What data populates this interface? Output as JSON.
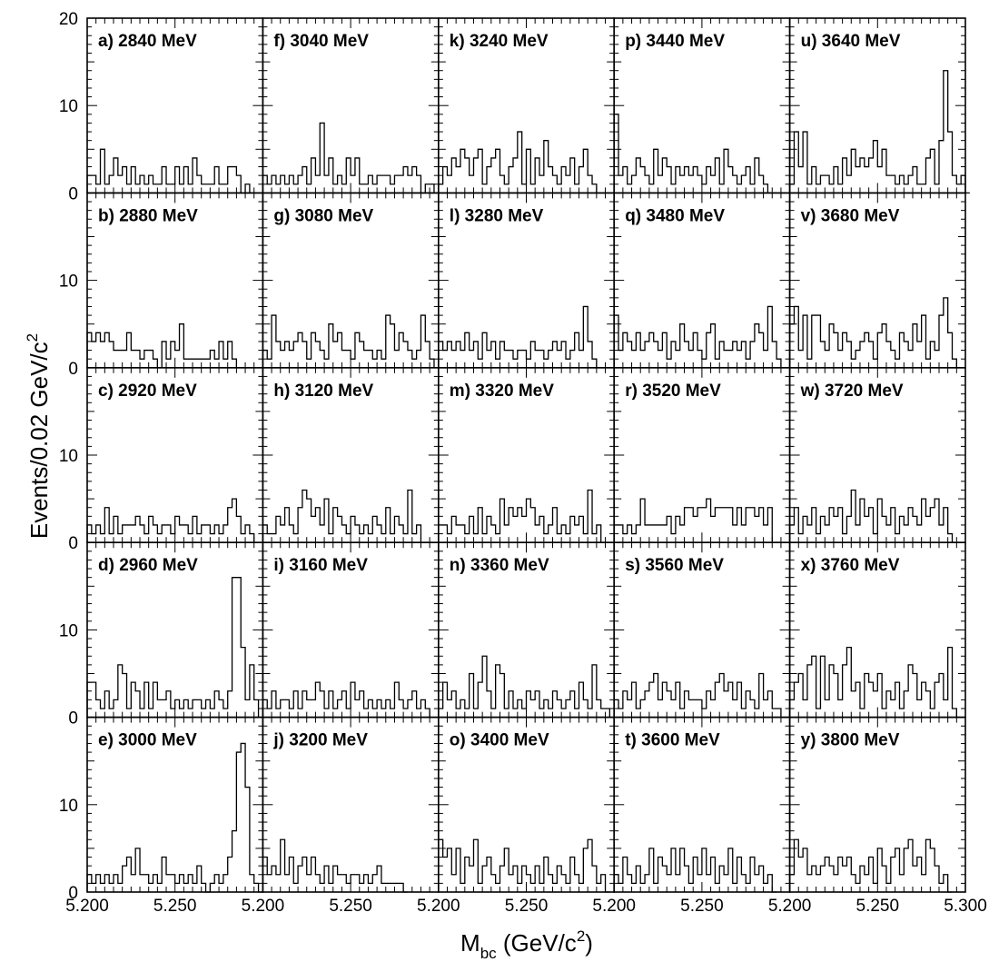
{
  "chart_data": {
    "type": "bar",
    "layout": "5x5 grid of histograms (columns left to right, rows top to bottom)",
    "xlabel": "M",
    "xlabel_sub": "bc",
    "xlabel_unit_prefix": " (GeV/c",
    "xlabel_unit_sup": "2",
    "xlabel_unit_suffix": ")",
    "ylabel": "Events/0.02 GeV/c",
    "ylabel_sup": "2",
    "x_range": [
      5.2,
      5.3
    ],
    "y_range": [
      0,
      20
    ],
    "x_tick_labels": [
      "5.200",
      "5.250",
      "5.200",
      "5.250",
      "5.200",
      "5.250",
      "5.200",
      "5.250",
      "5.200",
      "5.250",
      "5.300"
    ],
    "y_tick_labels": [
      "0",
      "10",
      "20"
    ],
    "bin_start": 5.2,
    "bin_width": 0.0025,
    "grid": false,
    "panels": [
      {
        "label": "a) 2840 MeV",
        "values": [
          2,
          2,
          1,
          5,
          1,
          2,
          4,
          2,
          3,
          1,
          3,
          1,
          2,
          1,
          2,
          1,
          1,
          3,
          1,
          1,
          3,
          1,
          3,
          1,
          4,
          2,
          1,
          1,
          1,
          3,
          1,
          1,
          3,
          3,
          2,
          0,
          1
        ]
      },
      {
        "label": "b) 2880 MeV",
        "values": [
          4,
          3,
          4,
          3,
          4,
          3,
          2,
          2,
          2,
          4,
          2,
          2,
          1,
          2,
          2,
          1,
          0,
          3,
          1,
          3,
          2,
          5,
          1,
          1,
          1,
          1,
          1,
          1,
          2,
          1,
          3,
          1,
          3,
          1,
          0,
          0
        ]
      },
      {
        "label": "c) 2920 MeV",
        "values": [
          2,
          1,
          2,
          1,
          4,
          1,
          3,
          1,
          2,
          2,
          2,
          3,
          2,
          1,
          3,
          2,
          1,
          2,
          2,
          1,
          3,
          2,
          2,
          1,
          3,
          1,
          2,
          2,
          1,
          2,
          1,
          2,
          4,
          5,
          3,
          1,
          2,
          1,
          0
        ]
      },
      {
        "label": "d) 2960 MeV",
        "values": [
          4,
          4,
          2,
          1,
          3,
          1,
          2,
          6,
          5,
          1,
          4,
          3,
          1,
          4,
          1,
          4,
          2,
          2,
          3,
          1,
          2,
          1,
          2,
          1,
          2,
          2,
          1,
          2,
          1,
          3,
          2,
          1,
          3,
          16,
          16,
          8,
          2,
          6,
          2,
          0
        ]
      },
      {
        "label": "e) 3000 MeV",
        "values": [
          2,
          1,
          2,
          1,
          2,
          1,
          2,
          1,
          3,
          4,
          2,
          5,
          2,
          2,
          1,
          2,
          1,
          4,
          2,
          2,
          1,
          2,
          1,
          2,
          1,
          3,
          1,
          0,
          1,
          2,
          1,
          2,
          4,
          7,
          16,
          17,
          12,
          2,
          1,
          0
        ]
      },
      {
        "label": "f) 3040 MeV",
        "values": [
          2,
          1,
          2,
          1,
          2,
          1,
          2,
          1,
          2,
          3,
          1,
          4,
          2,
          8,
          2,
          4,
          1,
          2,
          1,
          4,
          2,
          4,
          1,
          1,
          2,
          1,
          2,
          2,
          2,
          1,
          2,
          2,
          3,
          2,
          3,
          2,
          0,
          1,
          1,
          0
        ]
      },
      {
        "label": "g) 3080 MeV",
        "values": [
          2,
          1,
          6,
          3,
          2,
          3,
          2,
          3,
          4,
          3,
          1,
          4,
          3,
          2,
          1,
          5,
          3,
          4,
          2,
          2,
          1,
          4,
          3,
          2,
          2,
          1,
          2,
          1,
          6,
          5,
          2,
          4,
          3,
          2,
          1,
          2,
          6,
          3,
          1,
          0
        ]
      },
      {
        "label": "h) 3120 MeV",
        "values": [
          2,
          1,
          1,
          3,
          2,
          4,
          2,
          1,
          4,
          6,
          5,
          3,
          4,
          2,
          5,
          1,
          4,
          3,
          2,
          1,
          3,
          2,
          1,
          2,
          1,
          3,
          2,
          1,
          4,
          1,
          3,
          2,
          1,
          6,
          1,
          2,
          0
        ]
      },
      {
        "label": "i) 3160 MeV",
        "values": [
          2,
          1,
          3,
          1,
          2,
          2,
          1,
          3,
          1,
          3,
          2,
          2,
          4,
          3,
          1,
          3,
          1,
          2,
          3,
          1,
          4,
          2,
          3,
          1,
          2,
          1,
          2,
          1,
          2,
          1,
          4,
          2,
          1,
          2,
          3,
          1,
          2,
          1,
          0
        ]
      },
      {
        "label": "j) 3200 MeV",
        "values": [
          4,
          2,
          3,
          2,
          6,
          2,
          4,
          1,
          3,
          4,
          2,
          4,
          2,
          1,
          3,
          1,
          3,
          2,
          2,
          1,
          2,
          2,
          1,
          2,
          1,
          2,
          3,
          1,
          1,
          1,
          1,
          1,
          0
        ]
      },
      {
        "label": "k) 3240 MeV",
        "values": [
          1,
          3,
          2,
          4,
          3,
          5,
          4,
          2,
          4,
          5,
          1,
          3,
          4,
          5,
          2,
          1,
          3,
          4,
          7,
          1,
          5,
          1,
          4,
          2,
          6,
          3,
          2,
          1,
          3,
          2,
          4,
          1,
          3,
          5,
          2,
          1,
          0
        ]
      },
      {
        "label": "l) 3280 MeV",
        "values": [
          3,
          2,
          3,
          2,
          3,
          2,
          4,
          2,
          3,
          1,
          4,
          2,
          3,
          1,
          3,
          2,
          2,
          1,
          2,
          2,
          1,
          3,
          2,
          2,
          1,
          2,
          3,
          2,
          3,
          1,
          2,
          4,
          2,
          7,
          3,
          1,
          0
        ]
      },
      {
        "label": "m) 3320 MeV",
        "values": [
          2,
          2,
          1,
          3,
          2,
          2,
          1,
          3,
          1,
          4,
          1,
          3,
          2,
          1,
          5,
          2,
          4,
          3,
          4,
          3,
          5,
          4,
          2,
          3,
          1,
          2,
          4,
          1,
          2,
          1,
          3,
          2,
          3,
          1,
          6,
          1,
          2,
          0
        ]
      },
      {
        "label": "n) 3360 MeV",
        "values": [
          1,
          4,
          2,
          3,
          1,
          2,
          1,
          5,
          1,
          4,
          7,
          3,
          1,
          6,
          5,
          1,
          3,
          1,
          2,
          1,
          3,
          2,
          3,
          1,
          2,
          1,
          3,
          2,
          1,
          2,
          3,
          1,
          4,
          2,
          1,
          6,
          2,
          1,
          1,
          0
        ]
      },
      {
        "label": "o) 3400 MeV",
        "values": [
          6,
          4,
          5,
          2,
          5,
          1,
          4,
          3,
          6,
          1,
          3,
          4,
          2,
          1,
          3,
          5,
          2,
          3,
          1,
          3,
          2,
          1,
          3,
          1,
          4,
          2,
          1,
          3,
          2,
          1,
          4,
          2,
          1,
          5,
          6,
          3,
          1,
          2,
          0
        ]
      },
      {
        "label": "p) 3440 MeV",
        "values": [
          9,
          2,
          3,
          1,
          2,
          4,
          3,
          2,
          1,
          5,
          2,
          4,
          3,
          1,
          3,
          2,
          3,
          2,
          3,
          2,
          1,
          3,
          2,
          4,
          1,
          5,
          3,
          2,
          1,
          2,
          3,
          1,
          4,
          2,
          1,
          0
        ]
      },
      {
        "label": "q) 3480 MeV",
        "values": [
          6,
          2,
          4,
          3,
          2,
          4,
          2,
          3,
          4,
          3,
          2,
          4,
          1,
          3,
          2,
          5,
          3,
          2,
          4,
          2,
          1,
          4,
          5,
          1,
          3,
          2,
          2,
          3,
          2,
          3,
          1,
          3,
          5,
          4,
          2,
          7,
          3,
          1,
          0
        ]
      },
      {
        "label": "r) 3520 MeV",
        "values": [
          2,
          2,
          1,
          2,
          1,
          2,
          5,
          2,
          2,
          2,
          2,
          2,
          3,
          1,
          3,
          2,
          4,
          4,
          3,
          4,
          4,
          5,
          3,
          4,
          4,
          4,
          4,
          2,
          4,
          2,
          4,
          4,
          3,
          4,
          2,
          4,
          0
        ]
      },
      {
        "label": "s) 3560 MeV",
        "values": [
          2,
          1,
          3,
          2,
          4,
          1,
          2,
          3,
          4,
          5,
          2,
          4,
          3,
          2,
          4,
          1,
          3,
          2,
          2,
          2,
          1,
          3,
          2,
          4,
          5,
          3,
          4,
          2,
          4,
          1,
          3,
          2,
          1,
          5,
          2,
          3,
          1,
          1,
          0
        ]
      },
      {
        "label": "t) 3600 MeV",
        "values": [
          2,
          1,
          4,
          2,
          1,
          3,
          1,
          2,
          5,
          1,
          4,
          3,
          2,
          5,
          2,
          5,
          3,
          1,
          4,
          2,
          5,
          2,
          4,
          1,
          3,
          2,
          5,
          1,
          4,
          2,
          1,
          4,
          2,
          3,
          1,
          2,
          0
        ]
      },
      {
        "label": "u) 3640 MeV",
        "values": [
          1,
          7,
          3,
          7,
          1,
          3,
          1,
          2,
          2,
          1,
          3,
          1,
          4,
          2,
          5,
          3,
          4,
          3,
          4,
          6,
          3,
          5,
          2,
          2,
          1,
          2,
          1,
          2,
          3,
          1,
          1,
          4,
          5,
          1,
          6,
          14,
          7,
          2,
          1,
          2,
          0
        ]
      },
      {
        "label": "v) 3680 MeV",
        "values": [
          5,
          7,
          2,
          6,
          1,
          6,
          6,
          3,
          2,
          5,
          4,
          2,
          4,
          3,
          1,
          2,
          3,
          4,
          3,
          1,
          4,
          5,
          3,
          2,
          1,
          4,
          3,
          2,
          5,
          3,
          6,
          1,
          3,
          2,
          6,
          8,
          4,
          1,
          0
        ]
      },
      {
        "label": "w) 3720 MeV",
        "values": [
          2,
          4,
          1,
          3,
          2,
          4,
          1,
          3,
          2,
          4,
          3,
          4,
          1,
          3,
          6,
          2,
          5,
          3,
          4,
          1,
          5,
          3,
          2,
          4,
          1,
          3,
          2,
          4,
          3,
          2,
          5,
          3,
          4,
          5,
          2,
          4,
          1,
          0
        ]
      },
      {
        "label": "x) 3760 MeV",
        "values": [
          2,
          4,
          5,
          2,
          6,
          7,
          1,
          7,
          2,
          6,
          5,
          2,
          6,
          8,
          3,
          4,
          1,
          5,
          4,
          3,
          5,
          1,
          3,
          2,
          4,
          1,
          3,
          6,
          5,
          2,
          4,
          3,
          1,
          4,
          5,
          2,
          8,
          1,
          0
        ]
      },
      {
        "label": "y) 3800 MeV",
        "values": [
          2,
          6,
          4,
          5,
          2,
          3,
          2,
          3,
          4,
          3,
          2,
          4,
          3,
          4,
          2,
          1,
          3,
          2,
          4,
          1,
          5,
          3,
          1,
          4,
          5,
          2,
          5,
          6,
          3,
          4,
          2,
          6,
          5,
          3,
          1,
          2,
          0
        ]
      }
    ]
  }
}
